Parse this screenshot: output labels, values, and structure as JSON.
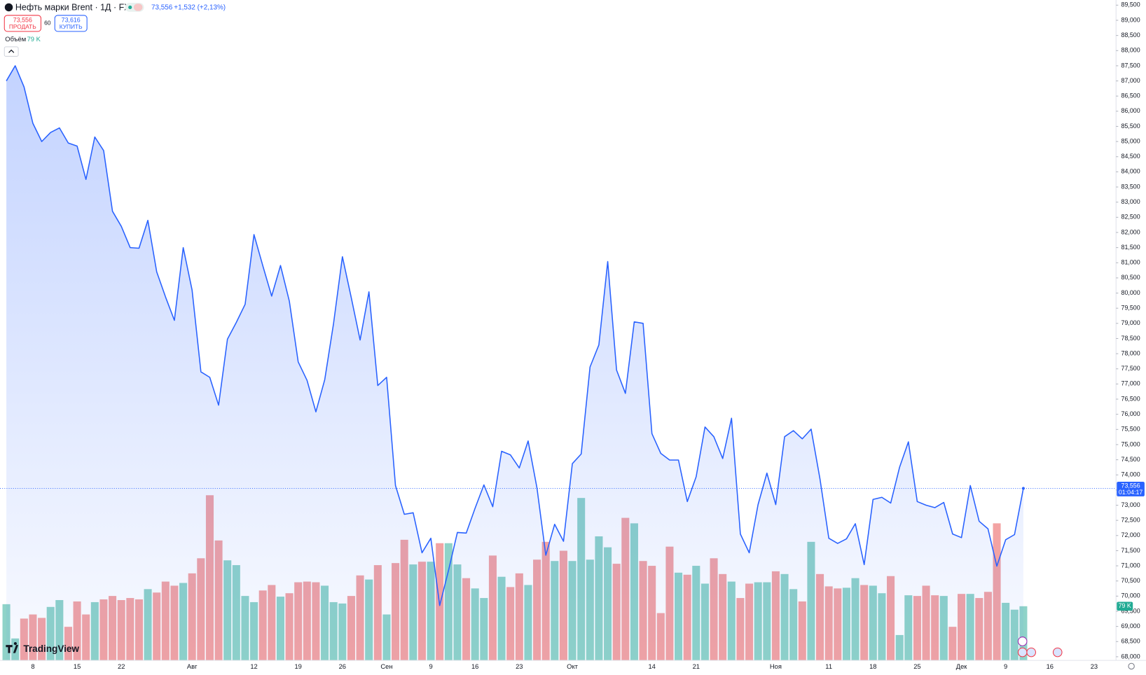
{
  "quote": {
    "title": "Нефть марки Brent · 1Д · FX",
    "price": "73,556",
    "change": "+1,532 (+2,13%)",
    "sell": "73,556",
    "sell_label": "ПРОДАТЬ",
    "spread": "60",
    "buy": "73,616",
    "buy_label": "КУПИТЬ",
    "countdown": "01:04:17",
    "branding": "TradingView"
  },
  "chart_data": {
    "type": "area",
    "title": "Нефть марки Brent · 1Д · FX",
    "color": "#2962ff",
    "categories": [
      null,
      null,
      null,
      "8",
      null,
      null,
      null,
      null,
      "15",
      null,
      null,
      null,
      null,
      "22",
      null,
      null,
      null,
      null,
      null,
      null,
      null,
      "Авг",
      null,
      null,
      null,
      null,
      null,
      null,
      "12",
      null,
      null,
      null,
      null,
      "19",
      null,
      null,
      null,
      null,
      "26",
      null,
      null,
      null,
      null,
      "Сен",
      null,
      null,
      null,
      null,
      "9",
      null,
      null,
      null,
      null,
      "16",
      null,
      null,
      null,
      null,
      "23",
      null,
      null,
      null,
      null,
      null,
      "Окт",
      null,
      null,
      null,
      null,
      null,
      null,
      null,
      null,
      "14",
      null,
      null,
      null,
      null,
      "21",
      null,
      null,
      null,
      null,
      null,
      null,
      null,
      null,
      "Ноя",
      null,
      null,
      null,
      null,
      null,
      "11",
      null,
      null,
      null,
      null,
      "18",
      null,
      null,
      null,
      null,
      "25",
      null,
      null,
      null,
      null,
      "Дек",
      null,
      null,
      null,
      null,
      "9",
      null,
      null,
      null,
      null,
      "16",
      null,
      null,
      null,
      null,
      "23",
      null,
      null
    ],
    "values": [
      87.0,
      87.5,
      86.8,
      85.6,
      85.0,
      85.3,
      85.45,
      84.95,
      84.85,
      83.75,
      85.15,
      84.7,
      82.7,
      82.2,
      81.5,
      81.48,
      82.4,
      80.7,
      79.87,
      79.1,
      81.5,
      80.1,
      77.4,
      77.22,
      76.3,
      78.48,
      79.03,
      79.63,
      81.93,
      80.9,
      79.9,
      80.91,
      79.73,
      77.73,
      77.12,
      76.08,
      77.14,
      79.0,
      81.2,
      79.85,
      78.45,
      80.04,
      76.95,
      77.22,
      73.65,
      72.7,
      72.75,
      71.43,
      71.91,
      69.69,
      70.85,
      72.1,
      72.08,
      72.9,
      73.67,
      72.95,
      74.78,
      74.66,
      74.23,
      75.12,
      73.57,
      71.35,
      72.37,
      71.81,
      74.37,
      74.69,
      77.56,
      78.29,
      81.04,
      77.46,
      76.69,
      79.05,
      79.0,
      75.36,
      74.71,
      74.49,
      74.49,
      73.12,
      73.94,
      75.58,
      75.26,
      74.54,
      75.87,
      72.05,
      71.43,
      73.02,
      74.06,
      73.02,
      75.26,
      75.46,
      75.19,
      75.51,
      73.87,
      71.91,
      71.74,
      71.89,
      72.39,
      71.04,
      73.19,
      73.26,
      73.07,
      74.25,
      75.09,
      73.12,
      73.0,
      72.92,
      73.09,
      72.05,
      71.93,
      73.65,
      72.47,
      72.22,
      70.99,
      71.86,
      72.03,
      73.556,
      null,
      null,
      null,
      null,
      null,
      null,
      null,
      null,
      null,
      null
    ],
    "volume": {
      "name": "Объём",
      "last_label": "79 K",
      "up_color": "#8fd3c8",
      "down_color": "#f3a3a3",
      "values": [
        82,
        32,
        61,
        67,
        62,
        78,
        88,
        49,
        86,
        67,
        85,
        89,
        94,
        88,
        91,
        89,
        104,
        99,
        115,
        109,
        113,
        127,
        149,
        241,
        175,
        146,
        139,
        94,
        85,
        102,
        110,
        93,
        98,
        114,
        115,
        114,
        109,
        85,
        83,
        94,
        124,
        118,
        139,
        67,
        142,
        176,
        140,
        144,
        144,
        171,
        171,
        140,
        120,
        105,
        91,
        153,
        122,
        107,
        127,
        110,
        147,
        173,
        145,
        160,
        145,
        237,
        147,
        181,
        165,
        141,
        208,
        200,
        145,
        138,
        69,
        166,
        128,
        125,
        138,
        112,
        149,
        126,
        115,
        91,
        112,
        114,
        114,
        130,
        126,
        104,
        86,
        173,
        126,
        108,
        105,
        106,
        120,
        110,
        109,
        98,
        123,
        37,
        95,
        94,
        109,
        95,
        94,
        49,
        97,
        97,
        91,
        100,
        200,
        84,
        74,
        79,
        null,
        null,
        null,
        null,
        null,
        null,
        null,
        null,
        null,
        null
      ]
    },
    "ylim": [
      67.88,
      89.67
    ],
    "yticks": [
      {
        "value": 68.0,
        "label": "68,000"
      },
      {
        "value": 68.5,
        "label": "68,500"
      },
      {
        "value": 69.0,
        "label": "69,000"
      },
      {
        "value": 69.5,
        "label": "69,500"
      },
      {
        "value": 70.0,
        "label": "70,000"
      },
      {
        "value": 70.5,
        "label": "70,500"
      },
      {
        "value": 71.0,
        "label": "71,000"
      },
      {
        "value": 71.5,
        "label": "71,500"
      },
      {
        "value": 72.0,
        "label": "72,000"
      },
      {
        "value": 72.5,
        "label": "72,500"
      },
      {
        "value": 73.0,
        "label": "73,000"
      },
      {
        "value": 73.5,
        "label": "73,500"
      },
      {
        "value": 74.0,
        "label": "74,000"
      },
      {
        "value": 74.5,
        "label": "74,500"
      },
      {
        "value": 75.0,
        "label": "75,000"
      },
      {
        "value": 75.5,
        "label": "75,500"
      },
      {
        "value": 76.0,
        "label": "76,000"
      },
      {
        "value": 76.5,
        "label": "76,500"
      },
      {
        "value": 77.0,
        "label": "77,000"
      },
      {
        "value": 77.5,
        "label": "77,500"
      },
      {
        "value": 78.0,
        "label": "78,000"
      },
      {
        "value": 78.5,
        "label": "78,500"
      },
      {
        "value": 79.0,
        "label": "79,000"
      },
      {
        "value": 79.5,
        "label": "79,500"
      },
      {
        "value": 80.0,
        "label": "80,000"
      },
      {
        "value": 80.5,
        "label": "80,500"
      },
      {
        "value": 81.0,
        "label": "81,000"
      },
      {
        "value": 81.5,
        "label": "81,500"
      },
      {
        "value": 82.0,
        "label": "82,000"
      },
      {
        "value": 82.5,
        "label": "82,500"
      },
      {
        "value": 83.0,
        "label": "83,000"
      },
      {
        "value": 83.5,
        "label": "83,500"
      },
      {
        "value": 84.0,
        "label": "84,000"
      },
      {
        "value": 84.5,
        "label": "84,500"
      },
      {
        "value": 85.0,
        "label": "85,000"
      },
      {
        "value": 85.5,
        "label": "85,500"
      },
      {
        "value": 86.0,
        "label": "86,000"
      },
      {
        "value": 86.5,
        "label": "86,500"
      },
      {
        "value": 87.0,
        "label": "87,000"
      },
      {
        "value": 87.5,
        "label": "87,500"
      },
      {
        "value": 88.0,
        "label": "88,000"
      },
      {
        "value": 88.5,
        "label": "88,500"
      },
      {
        "value": 89.0,
        "label": "89,000"
      },
      {
        "value": 89.5,
        "label": "89,500"
      }
    ]
  }
}
